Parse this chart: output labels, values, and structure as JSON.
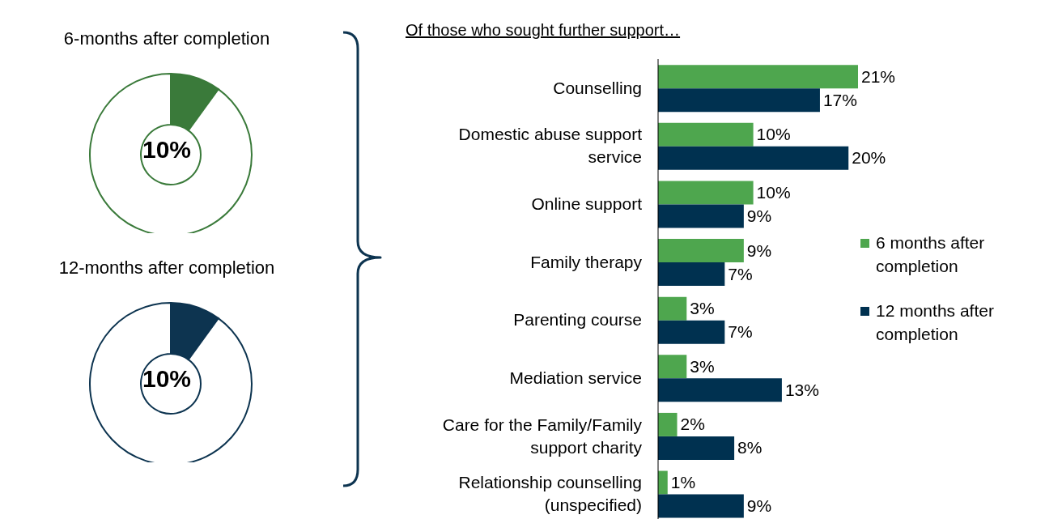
{
  "chart_data": [
    {
      "type": "donut",
      "title": "6-months after completion",
      "categories": [
        null,
        null
      ],
      "values": [
        10,
        90
      ],
      "colors": [
        "#3a7a3a",
        "#ffffff"
      ],
      "annotations": [
        "10%"
      ]
    },
    {
      "type": "donut",
      "title": "12-months after completion",
      "categories": [
        null,
        null
      ],
      "values": [
        10,
        90
      ],
      "colors": [
        "#0d3450",
        "#ffffff"
      ],
      "annotations": [
        "10%"
      ]
    },
    {
      "type": "bar",
      "orientation": "horizontal",
      "title": "Of those who sought further support…",
      "categories": [
        "Counselling",
        "Domestic abuse support service",
        "Online support",
        "Family therapy",
        "Parenting course",
        "Mediation service",
        "Care for the Family/Family support charity",
        "Relationship counselling (unspecified)"
      ],
      "series": [
        {
          "name": "6 months after completion",
          "color": "#4ea64e",
          "values": [
            21,
            10,
            10,
            9,
            3,
            3,
            2,
            1
          ],
          "value_labels": [
            "21%",
            "10%",
            "10%",
            "9%",
            "3%",
            "3%",
            "2%",
            "1%"
          ]
        },
        {
          "name": "12 months after completion",
          "color": "#003150",
          "values": [
            17,
            20,
            9,
            7,
            7,
            13,
            8,
            9
          ],
          "value_labels": [
            "17%",
            "20%",
            "9%",
            "7%",
            "7%",
            "13%",
            "8%",
            "9%"
          ]
        }
      ],
      "legend": "right",
      "tick_labels": "y"
    }
  ]
}
